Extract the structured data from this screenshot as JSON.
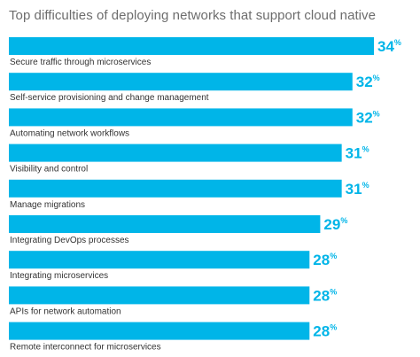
{
  "chart_data": {
    "type": "bar",
    "orientation": "horizontal",
    "title": "Top difficulties of deploying networks that support cloud native",
    "categories": [
      "Secure traffic through microservices",
      "Self-service provisioning and change management",
      "Automating network workflows",
      "Visibility and control",
      "Manage migrations",
      "Integrating DevOps processes",
      "Integrating microservices",
      "APIs for network automation",
      "Remote interconnect for microservices"
    ],
    "values": [
      34,
      32,
      32,
      31,
      31,
      29,
      28,
      28,
      28
    ],
    "value_suffix": "%",
    "xlim": [
      0,
      34
    ],
    "grid": false,
    "legend": "none"
  },
  "colors": {
    "bar": "#00b5e8",
    "value_text": "#00b5e8",
    "title_text": "#6d6d6d",
    "category_text": "#333333"
  }
}
